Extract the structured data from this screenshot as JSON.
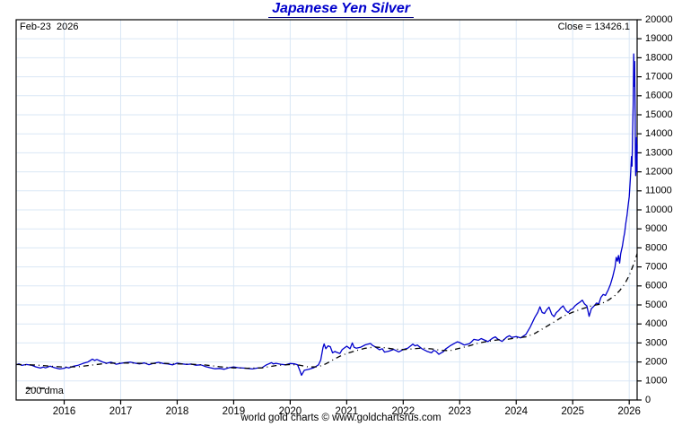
{
  "chart_data": {
    "type": "line",
    "title": "Japanese Yen Silver",
    "date_label": "Feb-23  2026",
    "close_label": "Close = 13426.1",
    "close_value": 13426.1,
    "legend_label": "200 dma",
    "credit": "world gold charts © www.goldchartsrus.com",
    "grid": true,
    "legend_position": "bottom-left",
    "colors": {
      "title": "#0000CC",
      "price_line": "#0000CC",
      "dma_line": "#000000",
      "grid": "#DAE7F5",
      "border": "#000000",
      "text": "#000000"
    },
    "x_axis": {
      "range": [
        2015.15,
        2026.14
      ],
      "tick_years": [
        2016,
        2017,
        2018,
        2019,
        2020,
        2021,
        2022,
        2023,
        2024,
        2025,
        2026
      ]
    },
    "y_axis": {
      "min": 0,
      "max": 20000,
      "step": 1000,
      "side": "right"
    },
    "series": [
      {
        "name": "Japanese Yen Silver price",
        "style": "solid",
        "color": "#0000CC",
        "points": [
          [
            2015.15,
            1850
          ],
          [
            2015.2,
            1900
          ],
          [
            2015.25,
            1820
          ],
          [
            2015.33,
            1870
          ],
          [
            2015.42,
            1830
          ],
          [
            2015.5,
            1740
          ],
          [
            2015.58,
            1680
          ],
          [
            2015.63,
            1730
          ],
          [
            2015.67,
            1690
          ],
          [
            2015.75,
            1780
          ],
          [
            2015.83,
            1700
          ],
          [
            2015.92,
            1630
          ],
          [
            2016.0,
            1670
          ],
          [
            2016.04,
            1720
          ],
          [
            2016.08,
            1690
          ],
          [
            2016.17,
            1780
          ],
          [
            2016.25,
            1830
          ],
          [
            2016.33,
            1920
          ],
          [
            2016.42,
            2000
          ],
          [
            2016.5,
            2150
          ],
          [
            2016.54,
            2080
          ],
          [
            2016.58,
            2130
          ],
          [
            2016.67,
            2010
          ],
          [
            2016.75,
            1930
          ],
          [
            2016.83,
            1990
          ],
          [
            2016.92,
            1880
          ],
          [
            2017.0,
            1930
          ],
          [
            2017.08,
            1960
          ],
          [
            2017.17,
            1990
          ],
          [
            2017.25,
            1940
          ],
          [
            2017.33,
            1900
          ],
          [
            2017.42,
            1950
          ],
          [
            2017.5,
            1860
          ],
          [
            2017.58,
            1930
          ],
          [
            2017.67,
            1980
          ],
          [
            2017.75,
            1920
          ],
          [
            2017.83,
            1900
          ],
          [
            2017.92,
            1850
          ],
          [
            2018.0,
            1940
          ],
          [
            2018.08,
            1900
          ],
          [
            2018.17,
            1870
          ],
          [
            2018.25,
            1890
          ],
          [
            2018.33,
            1830
          ],
          [
            2018.42,
            1850
          ],
          [
            2018.5,
            1760
          ],
          [
            2018.58,
            1700
          ],
          [
            2018.67,
            1640
          ],
          [
            2018.75,
            1660
          ],
          [
            2018.83,
            1620
          ],
          [
            2018.92,
            1700
          ],
          [
            2019.0,
            1740
          ],
          [
            2019.08,
            1700
          ],
          [
            2019.17,
            1680
          ],
          [
            2019.25,
            1660
          ],
          [
            2019.33,
            1630
          ],
          [
            2019.42,
            1680
          ],
          [
            2019.5,
            1700
          ],
          [
            2019.58,
            1850
          ],
          [
            2019.67,
            1960
          ],
          [
            2019.7,
            1900
          ],
          [
            2019.75,
            1930
          ],
          [
            2019.83,
            1880
          ],
          [
            2019.92,
            1850
          ],
          [
            2020.0,
            1920
          ],
          [
            2020.08,
            1900
          ],
          [
            2020.13,
            1850
          ],
          [
            2020.17,
            1550
          ],
          [
            2020.2,
            1300
          ],
          [
            2020.25,
            1560
          ],
          [
            2020.33,
            1620
          ],
          [
            2020.42,
            1700
          ],
          [
            2020.5,
            1850
          ],
          [
            2020.54,
            2100
          ],
          [
            2020.58,
            2750
          ],
          [
            2020.6,
            2950
          ],
          [
            2020.63,
            2700
          ],
          [
            2020.67,
            2850
          ],
          [
            2020.71,
            2800
          ],
          [
            2020.75,
            2480
          ],
          [
            2020.79,
            2550
          ],
          [
            2020.83,
            2500
          ],
          [
            2020.88,
            2450
          ],
          [
            2020.92,
            2650
          ],
          [
            2021.0,
            2830
          ],
          [
            2021.06,
            2700
          ],
          [
            2021.1,
            3000
          ],
          [
            2021.13,
            2780
          ],
          [
            2021.17,
            2720
          ],
          [
            2021.25,
            2780
          ],
          [
            2021.33,
            2900
          ],
          [
            2021.42,
            2970
          ],
          [
            2021.46,
            2870
          ],
          [
            2021.5,
            2800
          ],
          [
            2021.58,
            2640
          ],
          [
            2021.63,
            2700
          ],
          [
            2021.67,
            2520
          ],
          [
            2021.75,
            2570
          ],
          [
            2021.83,
            2660
          ],
          [
            2021.92,
            2530
          ],
          [
            2022.0,
            2650
          ],
          [
            2022.08,
            2720
          ],
          [
            2022.13,
            2840
          ],
          [
            2022.17,
            2940
          ],
          [
            2022.21,
            2850
          ],
          [
            2022.25,
            2890
          ],
          [
            2022.33,
            2700
          ],
          [
            2022.42,
            2560
          ],
          [
            2022.5,
            2480
          ],
          [
            2022.54,
            2610
          ],
          [
            2022.58,
            2560
          ],
          [
            2022.63,
            2400
          ],
          [
            2022.67,
            2470
          ],
          [
            2022.71,
            2540
          ],
          [
            2022.75,
            2680
          ],
          [
            2022.83,
            2850
          ],
          [
            2022.92,
            3000
          ],
          [
            2022.96,
            3060
          ],
          [
            2023.0,
            3020
          ],
          [
            2023.08,
            2890
          ],
          [
            2023.17,
            2960
          ],
          [
            2023.21,
            3060
          ],
          [
            2023.25,
            3190
          ],
          [
            2023.33,
            3140
          ],
          [
            2023.38,
            3230
          ],
          [
            2023.42,
            3180
          ],
          [
            2023.5,
            3070
          ],
          [
            2023.58,
            3250
          ],
          [
            2023.63,
            3320
          ],
          [
            2023.67,
            3210
          ],
          [
            2023.75,
            3080
          ],
          [
            2023.83,
            3300
          ],
          [
            2023.88,
            3380
          ],
          [
            2023.92,
            3290
          ],
          [
            2024.0,
            3340
          ],
          [
            2024.08,
            3270
          ],
          [
            2024.17,
            3450
          ],
          [
            2024.25,
            3850
          ],
          [
            2024.33,
            4350
          ],
          [
            2024.38,
            4600
          ],
          [
            2024.42,
            4900
          ],
          [
            2024.46,
            4600
          ],
          [
            2024.5,
            4550
          ],
          [
            2024.54,
            4750
          ],
          [
            2024.58,
            4880
          ],
          [
            2024.63,
            4500
          ],
          [
            2024.67,
            4380
          ],
          [
            2024.71,
            4600
          ],
          [
            2024.75,
            4700
          ],
          [
            2024.79,
            4850
          ],
          [
            2024.83,
            4950
          ],
          [
            2024.88,
            4700
          ],
          [
            2024.92,
            4600
          ],
          [
            2024.96,
            4750
          ],
          [
            2025.0,
            4800
          ],
          [
            2025.04,
            4950
          ],
          [
            2025.08,
            5050
          ],
          [
            2025.13,
            5150
          ],
          [
            2025.17,
            5250
          ],
          [
            2025.21,
            5050
          ],
          [
            2025.25,
            4950
          ],
          [
            2025.29,
            4400
          ],
          [
            2025.33,
            4800
          ],
          [
            2025.38,
            4950
          ],
          [
            2025.42,
            5100
          ],
          [
            2025.46,
            5050
          ],
          [
            2025.5,
            5400
          ],
          [
            2025.54,
            5550
          ],
          [
            2025.58,
            5500
          ],
          [
            2025.63,
            5800
          ],
          [
            2025.67,
            6100
          ],
          [
            2025.71,
            6500
          ],
          [
            2025.75,
            7000
          ],
          [
            2025.77,
            7500
          ],
          [
            2025.79,
            7300
          ],
          [
            2025.81,
            7600
          ],
          [
            2025.83,
            7200
          ],
          [
            2025.85,
            7700
          ],
          [
            2025.88,
            8100
          ],
          [
            2025.9,
            8500
          ],
          [
            2025.92,
            8800
          ],
          [
            2025.94,
            9300
          ],
          [
            2025.96,
            9700
          ],
          [
            2025.98,
            10200
          ],
          [
            2026.0,
            10700
          ],
          [
            2026.02,
            11600
          ],
          [
            2026.04,
            12800
          ],
          [
            2026.05,
            12300
          ],
          [
            2026.06,
            14200
          ],
          [
            2026.07,
            15500
          ],
          [
            2026.08,
            18200
          ],
          [
            2026.09,
            16500
          ],
          [
            2026.095,
            17800
          ],
          [
            2026.105,
            15000
          ],
          [
            2026.11,
            12800
          ],
          [
            2026.115,
            11800
          ],
          [
            2026.12,
            13400
          ],
          [
            2026.125,
            12600
          ],
          [
            2026.13,
            13800
          ],
          [
            2026.135,
            12000
          ],
          [
            2026.14,
            13426
          ]
        ]
      },
      {
        "name": "200 dma",
        "style": "dash-dot",
        "color": "#000000",
        "points": [
          [
            2015.15,
            1870
          ],
          [
            2015.5,
            1840
          ],
          [
            2015.75,
            1780
          ],
          [
            2016.0,
            1730
          ],
          [
            2016.25,
            1750
          ],
          [
            2016.5,
            1840
          ],
          [
            2016.75,
            1930
          ],
          [
            2017.0,
            1950
          ],
          [
            2017.25,
            1940
          ],
          [
            2017.5,
            1920
          ],
          [
            2017.75,
            1930
          ],
          [
            2018.0,
            1900
          ],
          [
            2018.25,
            1880
          ],
          [
            2018.5,
            1840
          ],
          [
            2018.75,
            1750
          ],
          [
            2019.0,
            1690
          ],
          [
            2019.25,
            1670
          ],
          [
            2019.5,
            1690
          ],
          [
            2019.75,
            1810
          ],
          [
            2020.0,
            1870
          ],
          [
            2020.17,
            1830
          ],
          [
            2020.33,
            1730
          ],
          [
            2020.5,
            1750
          ],
          [
            2020.63,
            1900
          ],
          [
            2020.75,
            2100
          ],
          [
            2020.88,
            2300
          ],
          [
            2021.0,
            2450
          ],
          [
            2021.17,
            2600
          ],
          [
            2021.33,
            2720
          ],
          [
            2021.5,
            2790
          ],
          [
            2021.67,
            2750
          ],
          [
            2021.83,
            2680
          ],
          [
            2022.0,
            2650
          ],
          [
            2022.17,
            2690
          ],
          [
            2022.33,
            2730
          ],
          [
            2022.5,
            2690
          ],
          [
            2022.67,
            2610
          ],
          [
            2022.83,
            2600
          ],
          [
            2023.0,
            2720
          ],
          [
            2023.17,
            2850
          ],
          [
            2023.33,
            2990
          ],
          [
            2023.5,
            3090
          ],
          [
            2023.67,
            3160
          ],
          [
            2023.83,
            3190
          ],
          [
            2024.0,
            3260
          ],
          [
            2024.17,
            3320
          ],
          [
            2024.33,
            3500
          ],
          [
            2024.5,
            3800
          ],
          [
            2024.67,
            4100
          ],
          [
            2024.83,
            4400
          ],
          [
            2025.0,
            4620
          ],
          [
            2025.17,
            4800
          ],
          [
            2025.33,
            4950
          ],
          [
            2025.5,
            5050
          ],
          [
            2025.63,
            5250
          ],
          [
            2025.75,
            5500
          ],
          [
            2025.83,
            5750
          ],
          [
            2025.92,
            6100
          ],
          [
            2026.0,
            6550
          ],
          [
            2026.04,
            6850
          ],
          [
            2026.08,
            7150
          ],
          [
            2026.11,
            7400
          ],
          [
            2026.14,
            7700
          ]
        ]
      }
    ]
  }
}
